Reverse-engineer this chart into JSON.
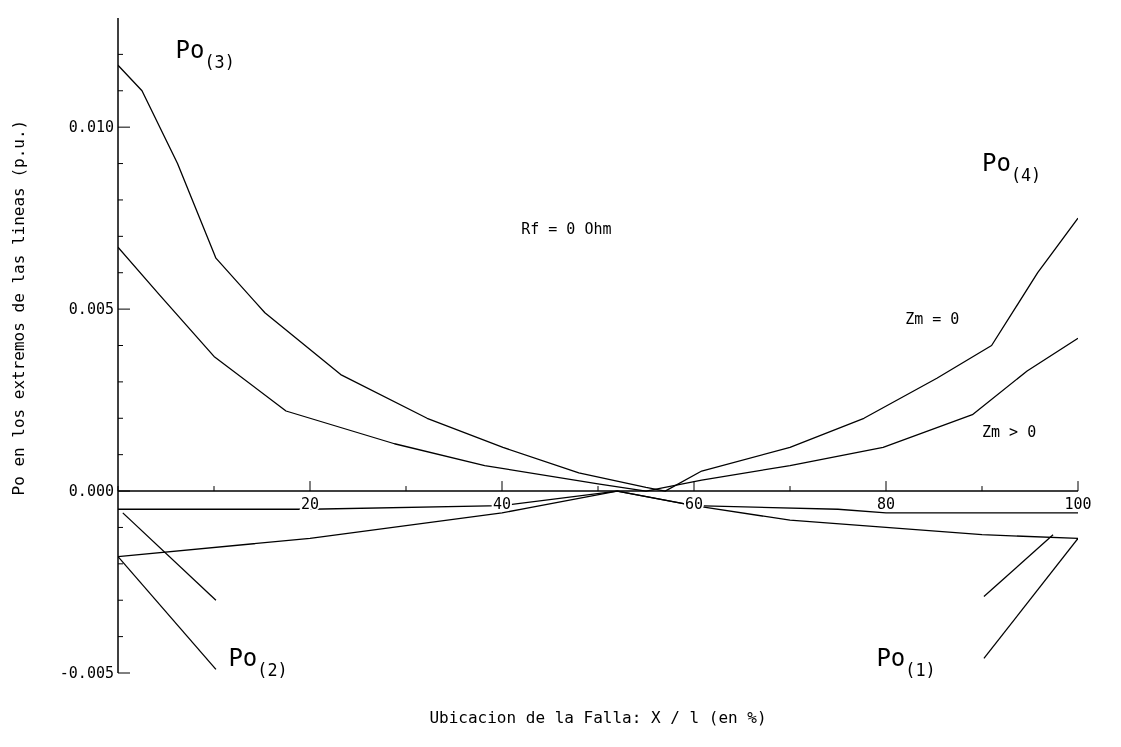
{
  "chart_data": {
    "type": "line",
    "xlabel": "Ubicacion de la Falla: X / l (en %)",
    "ylabel": "Po en los extremos de las lineas (p.u.)",
    "xlim": [
      0,
      100
    ],
    "xticks": [
      {
        "value": 0,
        "label": null
      },
      {
        "value": 10,
        "label": null
      },
      20,
      {
        "value": 30,
        "label": null
      },
      40,
      {
        "value": 50,
        "label": null
      },
      60,
      {
        "value": 70,
        "label": null
      },
      80,
      {
        "value": 90,
        "label": null
      },
      100
    ],
    "ylim": [
      -0.005,
      0.013
    ],
    "yticks": [
      {
        "value": -0.005,
        "label": "-0.005"
      },
      {
        "value": -0.004,
        "label": null
      },
      {
        "value": -0.003,
        "label": null
      },
      {
        "value": -0.002,
        "label": null
      },
      {
        "value": -0.001,
        "label": null
      },
      {
        "value": 0,
        "label": "0.000"
      },
      {
        "value": 0.001,
        "label": null
      },
      {
        "value": 0.002,
        "label": null
      },
      {
        "value": 0.003,
        "label": null
      },
      {
        "value": 0.004,
        "label": null
      },
      {
        "value": 0.005,
        "label": "0.005"
      },
      {
        "value": 0.006,
        "label": null
      },
      {
        "value": 0.007,
        "label": null
      },
      {
        "value": 0.008,
        "label": null
      },
      {
        "value": 0.009,
        "label": null
      },
      {
        "value": 0.01,
        "label": "0.010"
      },
      {
        "value": 0.011,
        "label": null
      },
      {
        "value": 0.012,
        "label": null
      }
    ],
    "marker": "none",
    "series": [
      {
        "color": "#000000",
        "x": [
          0,
          2.5,
          6.2,
          10.2,
          15.3,
          23.2,
          32.2,
          40.1,
          48,
          55,
          57,
          60.8,
          70,
          77.7,
          85.3,
          91,
          95.8,
          100
        ],
        "values": [
          0.0117,
          0.011,
          0.009,
          0.0064,
          0.0049,
          0.0032,
          0.002,
          0.0012,
          0.0005,
          0.0001,
          0,
          0.00055,
          0.0012,
          0.002,
          0.0031,
          0.004,
          0.006,
          0.0075
        ]
      },
      {
        "color": "#000000",
        "x": [
          0,
          4.3,
          10,
          17.5,
          28.8,
          38.2,
          50,
          55,
          60.8,
          70,
          79.7,
          89,
          94.7,
          100
        ],
        "values": [
          0.0067,
          0.0054,
          0.0037,
          0.0022,
          0.0013,
          0.0007,
          0.0002,
          0,
          0.0003,
          0.0007,
          0.0012,
          0.0021,
          0.0033,
          0.0042
        ]
      },
      {
        "color": "#000000",
        "x": [
          0,
          20,
          40,
          52,
          60,
          75,
          80,
          100
        ],
        "values": [
          -0.0005,
          -0.0005,
          -0.0004,
          0,
          -0.0004,
          -0.0005,
          -0.0006,
          -0.0006
        ]
      },
      {
        "color": "#000000",
        "x": [
          0,
          20,
          40,
          52,
          60,
          70,
          80,
          90,
          100
        ],
        "values": [
          -0.0018,
          -0.0013,
          -0.0006,
          0,
          -0.0004,
          -0.0008,
          -0.001,
          -0.0012,
          -0.0013
        ]
      },
      {
        "color": "#000000",
        "x": [
          0,
          10.2
        ],
        "values": [
          -0.0018,
          -0.0049
        ]
      },
      {
        "color": "#000000",
        "x": [
          0.5,
          10.2
        ],
        "values": [
          -0.0006,
          -0.003
        ]
      },
      {
        "color": "#000000",
        "x": [
          90.2,
          100
        ],
        "values": [
          -0.0046,
          -0.0013
        ]
      },
      {
        "color": "#000000",
        "x": [
          90.2,
          97.4
        ],
        "values": [
          -0.0029,
          -0.0012
        ]
      }
    ],
    "annotations": [
      "Po$_{(3)}$",
      "Po$_{(4)}$",
      "Po$_{(2)}$",
      "Po$_{(1)}$",
      "Zm = 0",
      "Zm > 0",
      "Rf = 0 Ohm"
    ]
  }
}
